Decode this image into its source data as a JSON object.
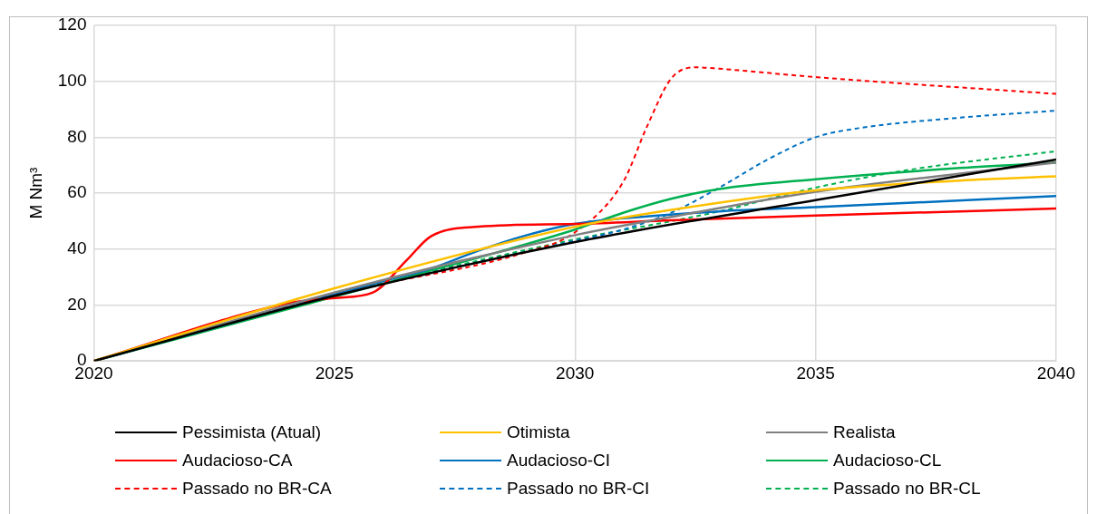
{
  "chart_data": {
    "type": "line",
    "ylabel": "M Nm³",
    "xlim": [
      2020,
      2040
    ],
    "xticks": [
      2020,
      2025,
      2030,
      2035,
      2040
    ],
    "ylim": [
      0,
      120
    ],
    "yticks": [
      0,
      20,
      40,
      60,
      80,
      100,
      120
    ],
    "grid": true,
    "legend": "bottom",
    "marker": "none",
    "series": [
      {
        "name": "Pessimista (Atual)",
        "color": "#000000",
        "line_style": "solid",
        "x": [
          2020,
          2025,
          2030,
          2035,
          2040
        ],
        "values": [
          0,
          23.3,
          42.5,
          57.5,
          72
        ]
      },
      {
        "name": "Otimista",
        "color": "#ffc000",
        "line_style": "solid",
        "x": [
          2020,
          2025,
          2030,
          2032,
          2035,
          2038,
          2040
        ],
        "values": [
          0,
          26,
          48,
          54,
          61,
          64.5,
          66
        ]
      },
      {
        "name": "Realista",
        "color": "#808080",
        "line_style": "solid",
        "x": [
          2020,
          2025,
          2030,
          2032,
          2035,
          2038,
          2040
        ],
        "values": [
          0,
          24.5,
          45,
          51.5,
          60.5,
          67,
          71
        ]
      },
      {
        "name": "Audacioso-CA",
        "color": "#ff0000",
        "line_style": "solid",
        "x": [
          2020,
          2024,
          2025,
          2025.8,
          2026.5,
          2027,
          2028,
          2030,
          2032,
          2035,
          2040
        ],
        "values": [
          0,
          20.5,
          22.5,
          24.5,
          36,
          44.5,
          48,
          49,
          50.3,
          52,
          54.5
        ]
      },
      {
        "name": "Audacioso-CI",
        "color": "#0070c0",
        "line_style": "solid",
        "x": [
          2020,
          2026,
          2027,
          2028,
          2029,
          2030,
          2031,
          2033,
          2035,
          2040
        ],
        "values": [
          0,
          28.5,
          33,
          39.5,
          45,
          49,
          51,
          53.5,
          55,
          59
        ]
      },
      {
        "name": "Audacioso-CL",
        "color": "#00b050",
        "line_style": "solid",
        "x": [
          2020,
          2025,
          2028,
          2030,
          2031,
          2032,
          2033,
          2035,
          2038,
          2040
        ],
        "values": [
          0,
          23,
          37,
          47,
          53,
          58,
          61.5,
          65,
          69,
          71
        ]
      },
      {
        "name": "Passado no BR-CA",
        "color": "#ff0000",
        "line_style": "dashed",
        "x": [
          2020,
          2025,
          2029,
          2030,
          2031,
          2031.5,
          2032,
          2032.5,
          2033,
          2035,
          2040
        ],
        "values": [
          0,
          24,
          39,
          46,
          64,
          84,
          101,
          105,
          104.5,
          101.5,
          95.5
        ]
      },
      {
        "name": "Passado no BR-CI",
        "color": "#0070c0",
        "line_style": "dashed",
        "x": [
          2020,
          2025,
          2030,
          2031,
          2032,
          2033,
          2034,
          2035,
          2036,
          2038,
          2040
        ],
        "values": [
          0,
          23.5,
          43,
          47,
          53,
          62,
          72,
          80,
          83.5,
          87,
          89.5
        ]
      },
      {
        "name": "Passado no BR-CL",
        "color": "#00b050",
        "line_style": "dashed",
        "x": [
          2020,
          2025,
          2030,
          2032,
          2033,
          2035,
          2037,
          2040
        ],
        "values": [
          0,
          23.5,
          43.5,
          50,
          53.5,
          62,
          68.5,
          75
        ]
      }
    ]
  }
}
